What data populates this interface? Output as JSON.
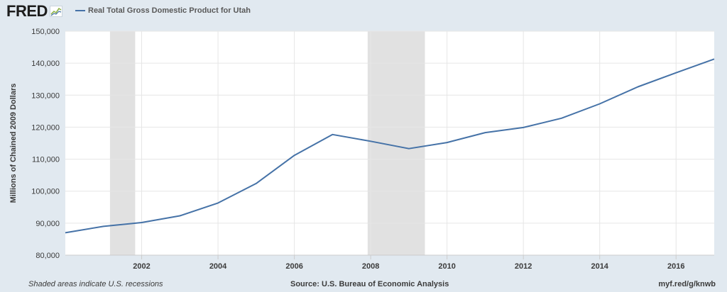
{
  "header": {
    "logo_text": "FRED",
    "logo_icon": "chart-line-icon"
  },
  "colors": {
    "line": "#4572a7",
    "recession": "#e1e1e1",
    "plot_bg": "#ffffff",
    "page_bg": "#e1e9f0",
    "grid": "#e6e6e6"
  },
  "chart_data": {
    "type": "line",
    "title": "",
    "ylabel": "Millions of Chained 2009 Dollars",
    "xlabel": "",
    "ylim": [
      80000,
      150000
    ],
    "xlim": [
      2000,
      2017
    ],
    "y_ticks": [
      80000,
      90000,
      100000,
      110000,
      120000,
      130000,
      140000,
      150000
    ],
    "y_tick_labels": [
      "80,000",
      "90,000",
      "100,000",
      "110,000",
      "120,000",
      "130,000",
      "140,000",
      "150,000"
    ],
    "x_ticks": [
      2002,
      2004,
      2006,
      2008,
      2010,
      2012,
      2014,
      2016
    ],
    "x_tick_labels": [
      "2002",
      "2004",
      "2006",
      "2008",
      "2010",
      "2012",
      "2014",
      "2016"
    ],
    "grid": true,
    "legend_position": "top-left",
    "recessions": [
      {
        "start": 2001.17,
        "end": 2001.83
      },
      {
        "start": 2007.92,
        "end": 2009.42
      }
    ],
    "series": [
      {
        "name": "Real Total Gross Domestic Product for Utah",
        "x": [
          2000,
          2001,
          2002,
          2003,
          2004,
          2005,
          2006,
          2007,
          2008,
          2009,
          2010,
          2011,
          2012,
          2013,
          2014,
          2015,
          2016,
          2017
        ],
        "values": [
          87000,
          89000,
          90200,
          92300,
          96300,
          102400,
          111200,
          117700,
          115600,
          113300,
          115200,
          118300,
          119900,
          122800,
          127300,
          132600,
          137000,
          141300
        ]
      }
    ]
  },
  "footer": {
    "note": "Shaded areas indicate U.S. recessions",
    "source": "Source: U.S. Bureau of Economic Analysis",
    "link": "myf.red/g/knwb"
  }
}
